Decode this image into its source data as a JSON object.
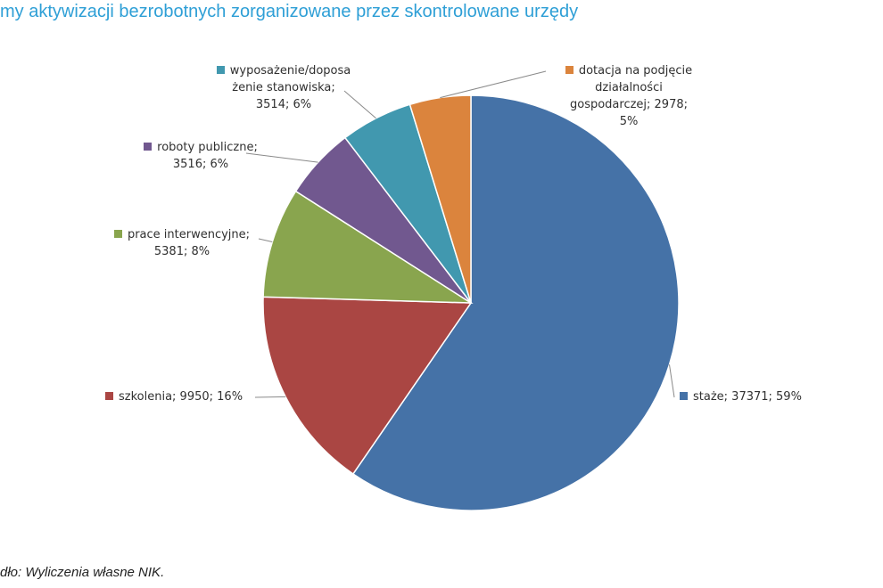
{
  "title": "my aktywizacji bezrobotnych zorganizowane przez skontrolowane urzędy",
  "source": "dło: Wyliczenia własne NIK.",
  "chart_data": {
    "type": "pie",
    "title": "my aktywizacji bezrobotnych zorganizowane przez skontrolowane urzędy",
    "legend": "none",
    "slices": [
      {
        "label": "staże",
        "value": 37371,
        "percent": "59%",
        "color": "#4572a7",
        "lines": [
          "staże; 37371; 59%"
        ]
      },
      {
        "label": "szkolenia",
        "value": 9950,
        "percent": "16%",
        "color": "#aa4643",
        "lines": [
          "szkolenia; 9950; 16%"
        ]
      },
      {
        "label": "prace interwencyjne",
        "value": 5381,
        "percent": "8%",
        "color": "#89a54e",
        "lines": [
          "prace interwencyjne;",
          "5381; 8%"
        ]
      },
      {
        "label": "roboty publiczne",
        "value": 3516,
        "percent": "6%",
        "color": "#71588f",
        "lines": [
          "roboty publiczne;",
          "3516; 6%"
        ]
      },
      {
        "label": "wyposażenie/doposażenie stanowiska",
        "value": 3514,
        "percent": "6%",
        "color": "#4198af",
        "lines": [
          "wyposażenie/doposa",
          "żenie stanowiska;",
          "3514; 6%"
        ]
      },
      {
        "label": "dotacja na podjęcie działalności gospodarczej",
        "value": 2978,
        "percent": "5%",
        "color": "#db843d",
        "lines": [
          "dotacja na podjęcie",
          "działalności",
          "gospodarczej; 2978;",
          "5%"
        ]
      }
    ]
  }
}
